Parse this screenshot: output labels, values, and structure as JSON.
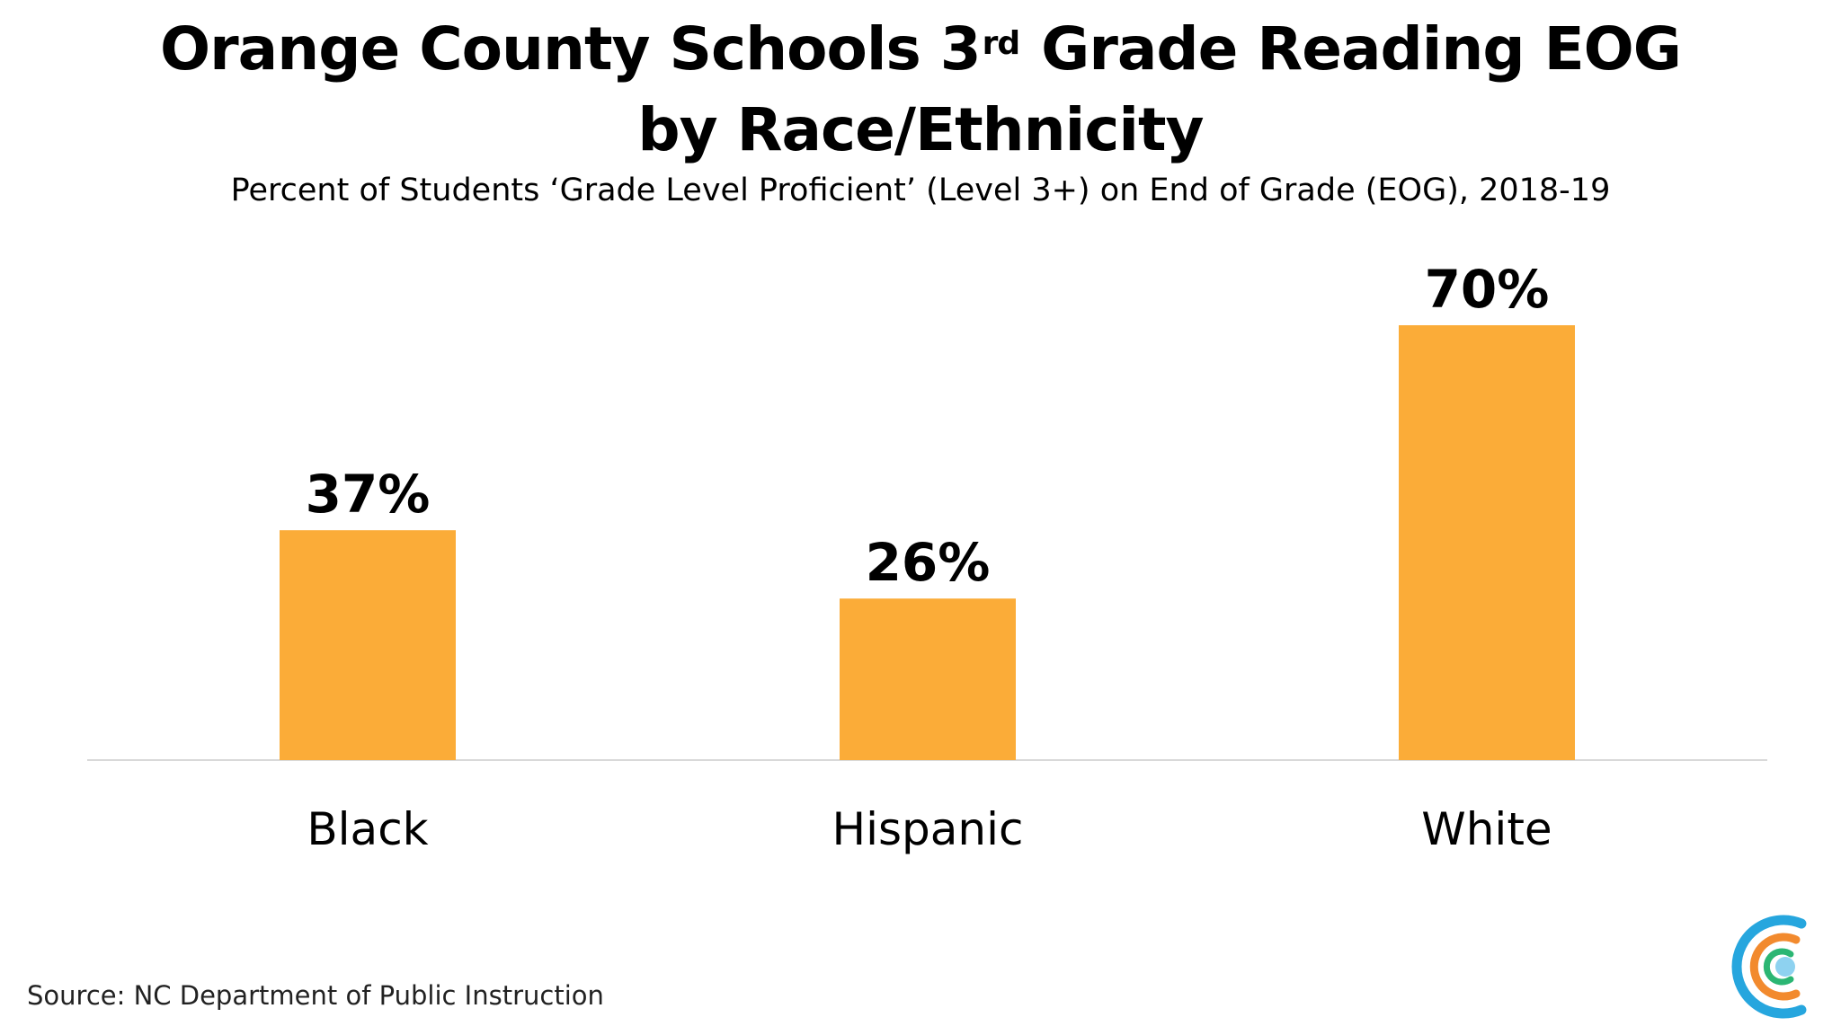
{
  "title": {
    "prefix": "Orange County Schools 3",
    "superscript": "rd",
    "suffix": " Grade Reading EOG",
    "line2": "by Race/Ethnicity"
  },
  "subtitle": "Percent of Students ‘Grade Level Proficient’ (Level 3+) on End of Grade (EOG), 2018-19",
  "source": "Source: NC Department of Public Instruction",
  "logo_icon": "concentric-c-logo-icon",
  "colors": {
    "bar": "#FBAC38",
    "axis": "#d9d9d9",
    "logo_outer": "#26A6DE",
    "logo_middle": "#F28A2E",
    "logo_inner": "#2BB673",
    "logo_dot": "#8ED2F0"
  },
  "chart_data": {
    "type": "bar",
    "categories": [
      "Black",
      "Hispanic",
      "White"
    ],
    "values": [
      37,
      26,
      70
    ],
    "data_labels": [
      "37%",
      "26%",
      "70%"
    ],
    "title": "Orange County Schools 3rd Grade Reading EOG by Race/Ethnicity",
    "subtitle": "Percent of Students ‘Grade Level Proficient’ (Level 3+) on End of Grade (EOG), 2018-19",
    "ylim": [
      0,
      70
    ],
    "grid": false,
    "legend": "none"
  }
}
